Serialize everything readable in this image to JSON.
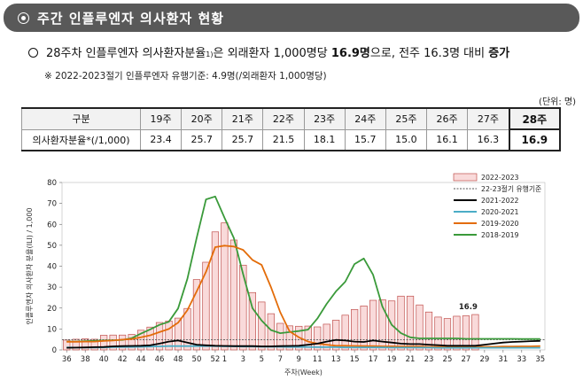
{
  "header": {
    "title": "주간 인플루엔자 의사환자 현황"
  },
  "summary": {
    "lead": "28주차 인플루엔자 의사환자분율",
    "footnote_mark": "1)",
    "mid": "은 외래환자 1,000명당",
    "value": "16.9명",
    "tail": "으로, 전주 16.3명 대비",
    "change": "증가"
  },
  "note": "※ 2022-2023절기 인플루엔자 유행기준: 4.9명(/외래환자 1,000명당)",
  "unit": "(단위: 명)",
  "table": {
    "header_label": "구분",
    "row_label": "의사환자분율*(/1,000)",
    "weeks": [
      "19주",
      "20주",
      "21주",
      "22주",
      "23주",
      "24주",
      "25주",
      "26주",
      "27주",
      "28주"
    ],
    "values": [
      "23.4",
      "25.7",
      "25.7",
      "21.5",
      "18.1",
      "15.7",
      "15.0",
      "16.1",
      "16.3",
      "16.9"
    ]
  },
  "colors": {
    "header_bg": "#595959",
    "bar_fill": "#f9dada",
    "bar_stroke": "#c0504d",
    "s2021_2022": "#000000",
    "s2020_2021": "#4bacc6",
    "s2019_2020": "#e36c09",
    "s2018_2019": "#3a9a3a",
    "threshold": "#555555"
  },
  "chart_data": {
    "type": "bar",
    "ylabel": "인플루엔자 의사환자 분율(ILI) / 1,000",
    "xlabel": "주차(Week)",
    "ylim": [
      0,
      80
    ],
    "yticks": [
      "0",
      "10",
      "20",
      "30",
      "40",
      "50",
      "60",
      "70",
      "80"
    ],
    "x_tick_labels": [
      "36",
      "38",
      "40",
      "42",
      "44",
      "46",
      "48",
      "50",
      "52",
      "1",
      "3",
      "5",
      "7",
      "9",
      "11",
      "13",
      "15",
      "17",
      "19",
      "21",
      "23",
      "25",
      "27",
      "29",
      "31",
      "33",
      "35"
    ],
    "x": [
      "36",
      "37",
      "38",
      "39",
      "40",
      "41",
      "42",
      "43",
      "44",
      "45",
      "46",
      "47",
      "48",
      "49",
      "50",
      "51",
      "52",
      "1",
      "2",
      "3",
      "4",
      "5",
      "6",
      "7",
      "8",
      "9",
      "10",
      "11",
      "12",
      "13",
      "14",
      "15",
      "16",
      "17",
      "18",
      "19",
      "20",
      "21",
      "22",
      "23",
      "24",
      "25",
      "26",
      "27",
      "28",
      "29",
      "30",
      "31",
      "32",
      "33",
      "34",
      "35"
    ],
    "bar_series": {
      "name": "2022-2023",
      "values": [
        4.7,
        5.1,
        5.3,
        5.1,
        7.0,
        7.1,
        7.1,
        7.4,
        9.4,
        10.9,
        13.1,
        13.8,
        15.2,
        19.8,
        33.6,
        41.9,
        56.4,
        60.7,
        52.5,
        40.5,
        27.4,
        22.9,
        17.3,
        12.7,
        11.5,
        11.3,
        11.4,
        11.0,
        12.3,
        14.2,
        16.6,
        19.3,
        21.0,
        23.7,
        24.0,
        23.4,
        25.7,
        25.7,
        21.5,
        18.1,
        15.7,
        15.0,
        16.1,
        16.3,
        16.9
      ]
    },
    "bar_annotation": "16.9",
    "threshold": {
      "name": "22-23절기 유행기준",
      "value": 4.9
    },
    "series": [
      {
        "name": "2021-2022",
        "values": [
          1.0,
          1.1,
          1.2,
          1.3,
          1.4,
          1.7,
          1.8,
          1.9,
          2.0,
          2.2,
          3.0,
          4.0,
          4.5,
          3.5,
          2.5,
          2.2,
          2.0,
          1.9,
          1.8,
          1.8,
          1.8,
          1.7,
          1.7,
          1.8,
          1.9,
          2.0,
          2.5,
          3.0,
          4.0,
          4.8,
          4.5,
          4.0,
          3.8,
          4.5,
          4.0,
          3.5,
          3.0,
          2.8,
          2.8,
          2.5,
          2.3,
          2.0,
          2.0,
          2.0,
          2.0,
          2.5,
          3.0,
          3.5,
          3.8,
          4.0,
          4.2,
          4.3
        ]
      },
      {
        "name": "2020-2021",
        "values": [
          1.2,
          1.1,
          1.1,
          1.1,
          1.2,
          1.3,
          1.4,
          1.4,
          1.5,
          1.6,
          1.7,
          1.8,
          1.8,
          1.8,
          1.8,
          1.8,
          1.8,
          1.7,
          1.7,
          1.6,
          1.6,
          1.5,
          1.5,
          1.5,
          1.4,
          1.4,
          1.4,
          1.3,
          1.3,
          1.3,
          1.2,
          1.2,
          1.2,
          1.2,
          1.2,
          1.1,
          1.1,
          1.1,
          1.1,
          1.1,
          1.0,
          1.0,
          1.0,
          1.0,
          1.0,
          1.0,
          1.0,
          1.0,
          1.0,
          1.0,
          1.0,
          1.0
        ]
      },
      {
        "name": "2019-2020",
        "values": [
          3.9,
          3.9,
          4.0,
          4.0,
          4.3,
          4.5,
          4.9,
          5.2,
          6.0,
          7.0,
          8.5,
          10.0,
          13.0,
          19.0,
          28.0,
          37.3,
          49.1,
          49.8,
          49.4,
          47.8,
          43.0,
          40.6,
          30.0,
          18.0,
          8.9,
          6.0,
          4.0,
          3.0,
          2.5,
          2.0,
          2.0,
          1.9,
          1.8,
          1.8,
          1.7,
          1.7,
          1.6,
          1.6,
          1.6,
          1.5,
          1.5,
          1.5,
          1.5,
          1.5,
          1.5,
          1.5,
          1.5,
          1.6,
          1.6,
          1.7,
          1.7,
          1.8
        ]
      },
      {
        "name": "2018-2019",
        "values": [
          4.0,
          4.0,
          4.2,
          4.3,
          4.5,
          4.6,
          4.8,
          5.6,
          7.8,
          9.8,
          12.0,
          13.4,
          19.8,
          34.0,
          53.6,
          71.9,
          73.3,
          63.1,
          53.5,
          36.2,
          20.0,
          14.0,
          9.5,
          8.0,
          8.5,
          9.0,
          9.7,
          15.0,
          22.0,
          28.0,
          32.6,
          41.0,
          43.7,
          35.9,
          20.7,
          12.0,
          8.0,
          6.0,
          5.5,
          5.5,
          5.5,
          5.5,
          5.5,
          5.3,
          5.3,
          5.3,
          5.3,
          5.3,
          5.3,
          5.2,
          5.2,
          5.2
        ]
      }
    ],
    "legend_position": "top-right"
  }
}
